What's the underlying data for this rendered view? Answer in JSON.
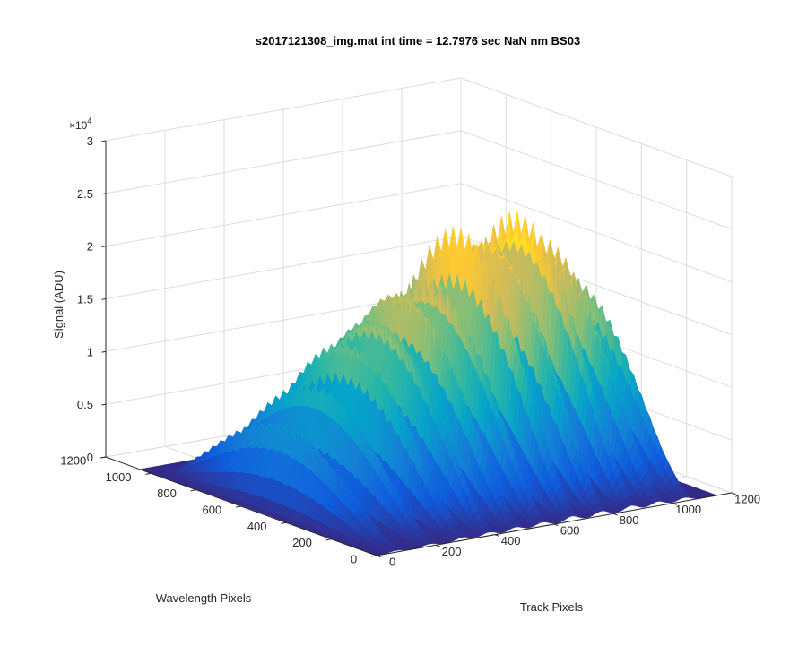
{
  "chart_data": {
    "type": "surface",
    "title": "s2017121308_img.mat int time = 12.7976 sec  NaN nm BS03",
    "xlabel": "Track Pixels",
    "ylabel": "Wavelength Pixels",
    "zlabel": "Signal (ADU)",
    "z_exponent_label": "×10",
    "z_exponent_power": "4",
    "xlim": [
      0,
      1200
    ],
    "ylim": [
      0,
      1200
    ],
    "zlim": [
      0,
      30000
    ],
    "x_ticks": [
      "0",
      "200",
      "400",
      "600",
      "800",
      "1000",
      "1200"
    ],
    "y_ticks": [
      "0",
      "200",
      "400",
      "600",
      "800",
      "1000",
      "1200"
    ],
    "z_ticks": [
      "0",
      "0.5",
      "1",
      "1.5",
      "2",
      "2.5",
      "3"
    ],
    "grid": true,
    "colormap": "parula",
    "colormap_colors": [
      "#352a87",
      "#0f5cdd",
      "#1481d6",
      "#06a4ca",
      "#2eb7a4",
      "#87bf77",
      "#d1bb59",
      "#fec832",
      "#f9fb0e"
    ],
    "track_peaks": [
      {
        "track": 65,
        "peak": 8000
      },
      {
        "track": 180,
        "peak": 11000
      },
      {
        "track": 290,
        "peak": 14500
      },
      {
        "track": 380,
        "peak": 16500
      },
      {
        "track": 470,
        "peak": 18500
      },
      {
        "track": 560,
        "peak": 19000
      },
      {
        "track": 660,
        "peak": 23000
      },
      {
        "track": 760,
        "peak": 22500
      },
      {
        "track": 860,
        "peak": 23500
      },
      {
        "track": 950,
        "peak": 21000
      },
      {
        "track": 1040,
        "peak": 17000
      }
    ],
    "data_extent": {
      "track_max": 1150,
      "wavelength_max": 1050
    }
  }
}
